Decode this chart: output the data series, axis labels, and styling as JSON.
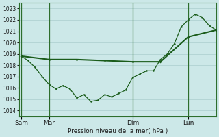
{
  "xlabel": "Pression niveau de la mer( hPa )",
  "ylim": [
    1013.5,
    1023.5
  ],
  "yticks": [
    1014,
    1015,
    1016,
    1017,
    1018,
    1019,
    1020,
    1021,
    1022,
    1023
  ],
  "xtick_labels": [
    "Sam",
    "Mar",
    "Dim",
    "Lun"
  ],
  "xtick_positions": [
    0,
    24,
    96,
    144
  ],
  "xlim": [
    -2,
    168
  ],
  "bg_color": "#cce8e8",
  "line_color": "#1a5c1a",
  "grid_major_color": "#aacece",
  "grid_minor_color": "#b8d8d8",
  "vline_color": "#2d6e2d",
  "vline_positions": [
    0,
    24,
    96,
    144
  ],
  "line1_x": [
    0,
    24,
    48,
    72,
    96,
    120,
    144,
    168
  ],
  "line1_y": [
    1018.8,
    1018.5,
    1018.5,
    1018.4,
    1018.3,
    1018.3,
    1020.5,
    1021.1
  ],
  "line2_x": [
    0,
    6,
    12,
    18,
    24,
    30,
    36,
    42,
    48,
    54,
    60,
    66,
    72,
    78,
    84,
    90,
    96,
    102,
    108,
    114,
    120,
    126,
    132,
    138,
    144,
    150,
    156,
    162,
    168
  ],
  "line2_y": [
    1018.8,
    1018.4,
    1017.8,
    1017.0,
    1016.3,
    1015.9,
    1016.2,
    1015.9,
    1015.1,
    1015.4,
    1014.8,
    1014.9,
    1015.4,
    1015.2,
    1015.5,
    1015.8,
    1016.9,
    1017.2,
    1017.5,
    1017.5,
    1018.5,
    1019.0,
    1019.9,
    1021.4,
    1022.0,
    1022.5,
    1022.2,
    1021.5,
    1021.1
  ]
}
